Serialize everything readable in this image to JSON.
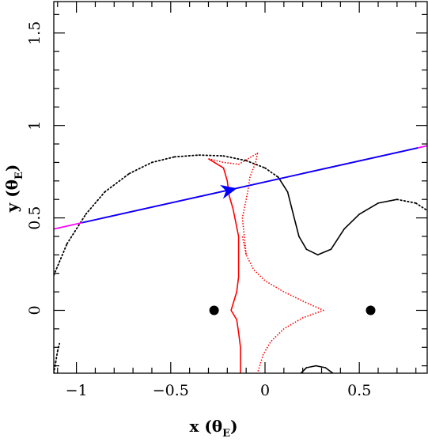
{
  "chart_data": {
    "type": "line",
    "title": "",
    "xlabel": {
      "main": "x (θ",
      "sub": "E",
      "close": ")"
    },
    "ylabel": {
      "main": "y (θ",
      "sub": "E",
      "close": ")"
    },
    "xlim": [
      -1.12,
      0.86
    ],
    "ylim": [
      -0.34,
      1.67
    ],
    "xticks": [
      {
        "value": -1,
        "label": "−1"
      },
      {
        "value": -0.5,
        "label": "−0.5"
      },
      {
        "value": 0,
        "label": "0"
      },
      {
        "value": 0.5,
        "label": "0.5"
      }
    ],
    "yticks": [
      {
        "value": 0,
        "label": "0"
      },
      {
        "value": 0.5,
        "label": "0.5"
      },
      {
        "value": 1,
        "label": "1"
      },
      {
        "value": 1.5,
        "label": "1.5"
      }
    ],
    "grid": false,
    "colors": {
      "caustic": "#ff0000",
      "critical_curve": "#000000",
      "trajectory": "#0000ff",
      "trajectory_ends": "#ff00ff",
      "lens": "#000000"
    },
    "lens_positions": [
      {
        "x": -0.27,
        "y": 0.0
      },
      {
        "x": 0.56,
        "y": 0.0
      }
    ],
    "source_trajectory": {
      "start": [
        -1.12,
        0.44
      ],
      "end": [
        0.86,
        0.89
      ],
      "blue_segment": [
        -0.97,
        0.81
      ],
      "arrow_at": [
        -0.19,
        0.65
      ]
    },
    "caustic_cusps": [
      {
        "x": -0.3,
        "y": 0.82
      },
      {
        "x": -0.04,
        "y": 0.85
      },
      {
        "x": 0.31,
        "y": 0.0
      },
      {
        "x": -0.18,
        "y": 0.0
      }
    ],
    "critical_curves": [
      {
        "name": "outer",
        "points": [
          [
            -1.12,
            0.19
          ],
          [
            -1.05,
            0.36
          ],
          [
            -0.95,
            0.52
          ],
          [
            -0.85,
            0.64
          ],
          [
            -0.72,
            0.74
          ],
          [
            -0.6,
            0.8
          ],
          [
            -0.48,
            0.83
          ],
          [
            -0.35,
            0.84
          ],
          [
            -0.22,
            0.835
          ],
          [
            -0.1,
            0.81
          ],
          [
            0.0,
            0.77
          ],
          [
            0.07,
            0.72
          ],
          [
            0.12,
            0.64
          ],
          [
            0.15,
            0.52
          ],
          [
            0.18,
            0.4
          ],
          [
            0.22,
            0.33
          ],
          [
            0.28,
            0.3
          ],
          [
            0.35,
            0.33
          ],
          [
            0.42,
            0.44
          ],
          [
            0.5,
            0.52
          ],
          [
            0.6,
            0.58
          ],
          [
            0.7,
            0.6
          ],
          [
            0.8,
            0.58
          ],
          [
            0.86,
            0.54
          ]
        ],
        "dotted_ranges": [
          [
            0,
            12
          ],
          [
            21,
            24
          ]
        ]
      },
      {
        "name": "lower-left",
        "points": [
          [
            -1.12,
            -0.34
          ],
          [
            -1.11,
            -0.28
          ],
          [
            -1.1,
            -0.22
          ],
          [
            -1.09,
            -0.18
          ]
        ],
        "dotted_ranges": [
          [
            0,
            4
          ]
        ]
      },
      {
        "name": "lower-right",
        "points": [
          [
            0.19,
            -0.34
          ],
          [
            0.22,
            -0.31
          ],
          [
            0.27,
            -0.3
          ],
          [
            0.32,
            -0.31
          ],
          [
            0.36,
            -0.34
          ]
        ],
        "dotted_ranges": []
      }
    ],
    "caustic_curves": [
      {
        "name": "upper",
        "points": [
          [
            -0.3,
            0.82
          ],
          [
            -0.22,
            0.8
          ],
          [
            -0.14,
            0.79
          ],
          [
            -0.04,
            0.85
          ],
          [
            -0.05,
            0.8
          ],
          [
            -0.08,
            0.72
          ],
          [
            -0.09,
            0.65
          ],
          [
            -0.1,
            0.6
          ],
          [
            -0.12,
            0.5
          ],
          [
            -0.11,
            0.4
          ],
          [
            -0.1,
            0.3
          ]
        ]
      },
      {
        "name": "left-arm",
        "points": [
          [
            -0.3,
            0.82
          ],
          [
            -0.22,
            0.77
          ],
          [
            -0.2,
            0.7
          ],
          [
            -0.19,
            0.62
          ],
          [
            -0.17,
            0.55
          ],
          [
            -0.14,
            0.4
          ],
          [
            -0.14,
            0.3
          ],
          [
            -0.14,
            0.18
          ],
          [
            -0.15,
            0.1
          ],
          [
            -0.18,
            0.0
          ],
          [
            -0.15,
            -0.05
          ],
          [
            -0.14,
            -0.12
          ],
          [
            -0.13,
            -0.2
          ],
          [
            -0.13,
            -0.34
          ]
        ]
      },
      {
        "name": "right-arm",
        "points": [
          [
            -0.12,
            0.4
          ],
          [
            -0.1,
            0.3
          ],
          [
            -0.06,
            0.22
          ],
          [
            0.0,
            0.16
          ],
          [
            0.1,
            0.1
          ],
          [
            0.2,
            0.05
          ],
          [
            0.31,
            0.0
          ],
          [
            0.2,
            -0.04
          ],
          [
            0.1,
            -0.1
          ],
          [
            0.03,
            -0.17
          ],
          [
            -0.01,
            -0.24
          ],
          [
            -0.04,
            -0.34
          ]
        ]
      }
    ]
  }
}
